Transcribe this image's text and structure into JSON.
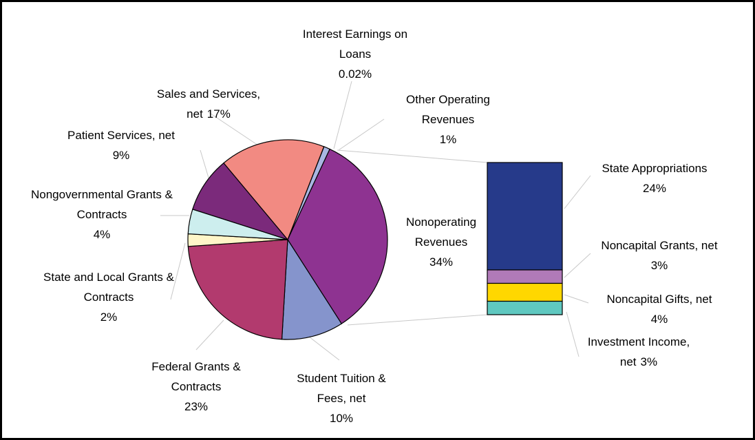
{
  "chart_data": {
    "type": "pie",
    "categories": [
      "Interest Earnings on Loans",
      "Other Operating Revenues",
      "Nonoperating Revenues",
      "Student Tuition & Fees, net",
      "Federal Grants & Contracts",
      "State and Local Grants & Contracts",
      "Nongovernmental Grants & Contracts",
      "Patient Services, net",
      "Sales and Services, net"
    ],
    "values": [
      0.02,
      1,
      34,
      10,
      23,
      2,
      4,
      9,
      17
    ],
    "value_labels": [
      "0.02%",
      "1%",
      "34%",
      "10%",
      "23%",
      "2%",
      "4%",
      "9%",
      "17%"
    ],
    "colors": [
      "#c8d0ee",
      "#a9b6e2",
      "#8e3391",
      "#8594cc",
      "#b23a6e",
      "#fff6c8",
      "#cdeeee",
      "#7b2a7b",
      "#f28a82"
    ],
    "bar": {
      "categories": [
        "State Appropriations",
        "Noncapital Grants, net",
        "Noncapital Gifts, net",
        "Investment Income, net"
      ],
      "values": [
        24,
        3,
        4,
        3
      ],
      "value_labels": [
        "24%",
        "3%",
        "4%",
        "3%"
      ],
      "colors": [
        "#263a8a",
        "#b07ab8",
        "#ffd700",
        "#5fc8c0"
      ]
    }
  }
}
